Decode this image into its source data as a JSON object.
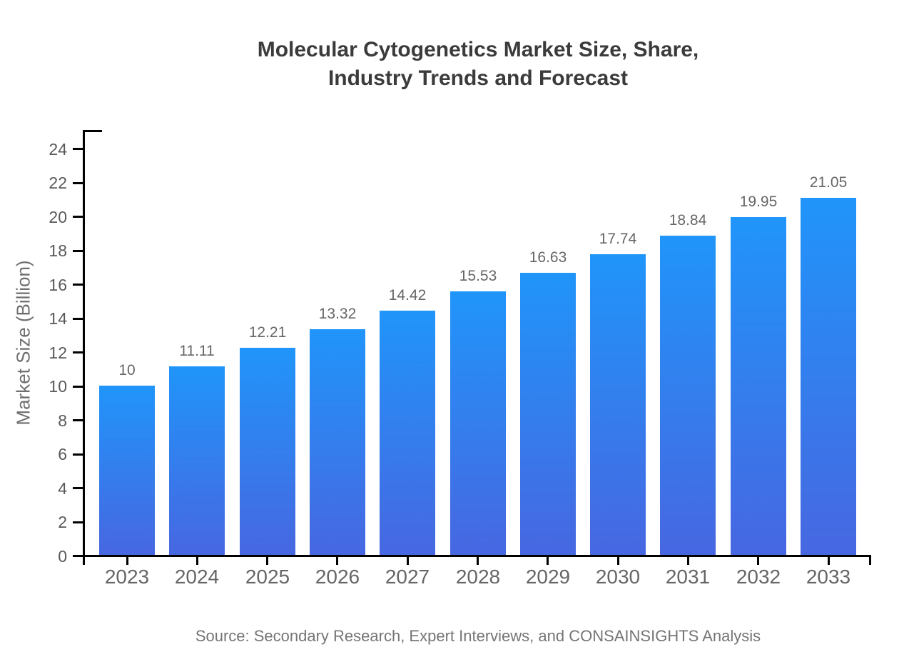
{
  "title": {
    "line1": "Molecular Cytogenetics Market Size, Share,",
    "line2": "Industry Trends and Forecast"
  },
  "source": {
    "text": "Source: Secondary Research, Expert Interviews, and CONSAINSIGHTS Analysis"
  },
  "chart_data": {
    "type": "bar",
    "title": "Molecular Cytogenetics Market Size, Share, Industry Trends and Forecast",
    "categories": [
      "2023",
      "2024",
      "2025",
      "2026",
      "2027",
      "2028",
      "2029",
      "2030",
      "2031",
      "2032",
      "2033"
    ],
    "values": [
      10,
      11.11,
      12.21,
      13.32,
      14.42,
      15.53,
      16.63,
      17.74,
      18.84,
      19.95,
      21.05
    ],
    "bar_labels": [
      "10",
      "11.11",
      "12.21",
      "13.32",
      "14.42",
      "15.53",
      "16.63",
      "17.74",
      "18.84",
      "19.95",
      "21.05"
    ],
    "xlabel": "",
    "ylabel": "Market Size (Billion)",
    "ylim": [
      0,
      24
    ],
    "yticks": [
      0,
      2,
      4,
      6,
      8,
      10,
      12,
      14,
      16,
      18,
      20,
      22,
      24
    ],
    "grid": false,
    "legend": "none",
    "colors": {
      "bar_gradient_top": "#2095FA",
      "bar_gradient_bottom": "#4767E1",
      "axis": "#000000",
      "title_text": "#3b3b3b",
      "tick_label_text": "#595959",
      "category_label_text": "#666666",
      "value_label_text": "#666666",
      "source_text": "#757575"
    }
  }
}
